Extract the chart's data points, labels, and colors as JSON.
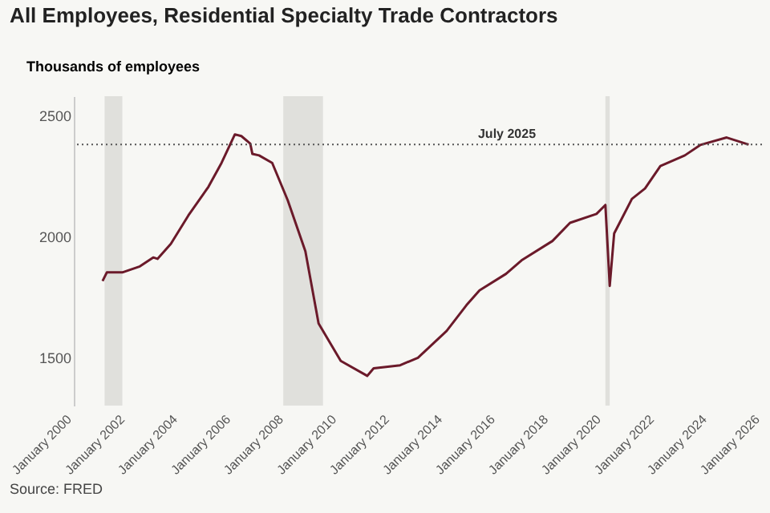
{
  "chart_data": {
    "type": "line",
    "title": "All Employees, Residential Specialty Trade Contractors",
    "ylabel": "Thousands of employees",
    "x": [
      "2001-02",
      "2001-04",
      "2001-11",
      "2002-07",
      "2003-01",
      "2003-03",
      "2003-09",
      "2004-05",
      "2005-02",
      "2005-08",
      "2006-02",
      "2006-05",
      "2006-09",
      "2006-10",
      "2007-01",
      "2007-07",
      "2008-02",
      "2008-10",
      "2009-04",
      "2010-02",
      "2011-02",
      "2011-05",
      "2012-05",
      "2013-01",
      "2014-02",
      "2014-11",
      "2015-05",
      "2016-05",
      "2016-12",
      "2018-02",
      "2018-10",
      "2019-10",
      "2020-02",
      "2020-04",
      "2020-06",
      "2021-02",
      "2021-08",
      "2022-03",
      "2023-02",
      "2023-09",
      "2024-09",
      "2025-07"
    ],
    "series": [
      {
        "color": "#6b1a2a",
        "values": [
          1815,
          1851,
          1851,
          1876,
          1913,
          1907,
          1969,
          2087,
          2205,
          2304,
          2422,
          2415,
          2384,
          2341,
          2335,
          2304,
          2149,
          1938,
          1640,
          1485,
          1423,
          1454,
          1467,
          1498,
          1609,
          1715,
          1777,
          1845,
          1901,
          1981,
          2056,
          2093,
          2130,
          1795,
          2012,
          2155,
          2198,
          2291,
          2335,
          2378,
          2409,
          2380
        ]
      }
    ],
    "xlim": [
      "2000-01",
      "2026-01"
    ],
    "xticks": [
      {
        "value": "2000-01",
        "label": "January 2000"
      },
      {
        "value": "2002-01",
        "label": "January 2002"
      },
      {
        "value": "2004-01",
        "label": "January 2004"
      },
      {
        "value": "2006-01",
        "label": "January 2006"
      },
      {
        "value": "2008-01",
        "label": "January 2008"
      },
      {
        "value": "2010-01",
        "label": "January 2010"
      },
      {
        "value": "2012-01",
        "label": "January 2012"
      },
      {
        "value": "2014-01",
        "label": "January 2014"
      },
      {
        "value": "2016-01",
        "label": "January 2016"
      },
      {
        "value": "2018-01",
        "label": "January 2018"
      },
      {
        "value": "2020-01",
        "label": "January 2020"
      },
      {
        "value": "2022-01",
        "label": "January 2022"
      },
      {
        "value": "2024-01",
        "label": "January 2024"
      },
      {
        "value": "2026-01",
        "label": "January 2026"
      }
    ],
    "ylim": [
      1300,
      2580
    ],
    "yticks": [
      1500,
      2000,
      2500
    ],
    "bands": [
      {
        "axis": "x",
        "from": "2001-03",
        "to": "2001-11",
        "color": "#e0e0dc"
      },
      {
        "axis": "x",
        "from": "2007-12",
        "to": "2009-06",
        "color": "#e0e0dc"
      },
      {
        "axis": "x",
        "from": "2020-02",
        "to": "2020-04",
        "color": "#e0e0dc"
      }
    ],
    "ref_lines": [
      {
        "axis": "y",
        "value": 2380,
        "label": "July 2025",
        "color": "#555555",
        "line_style": "dotted"
      }
    ],
    "annotations": [
      "Source: FRED"
    ]
  }
}
